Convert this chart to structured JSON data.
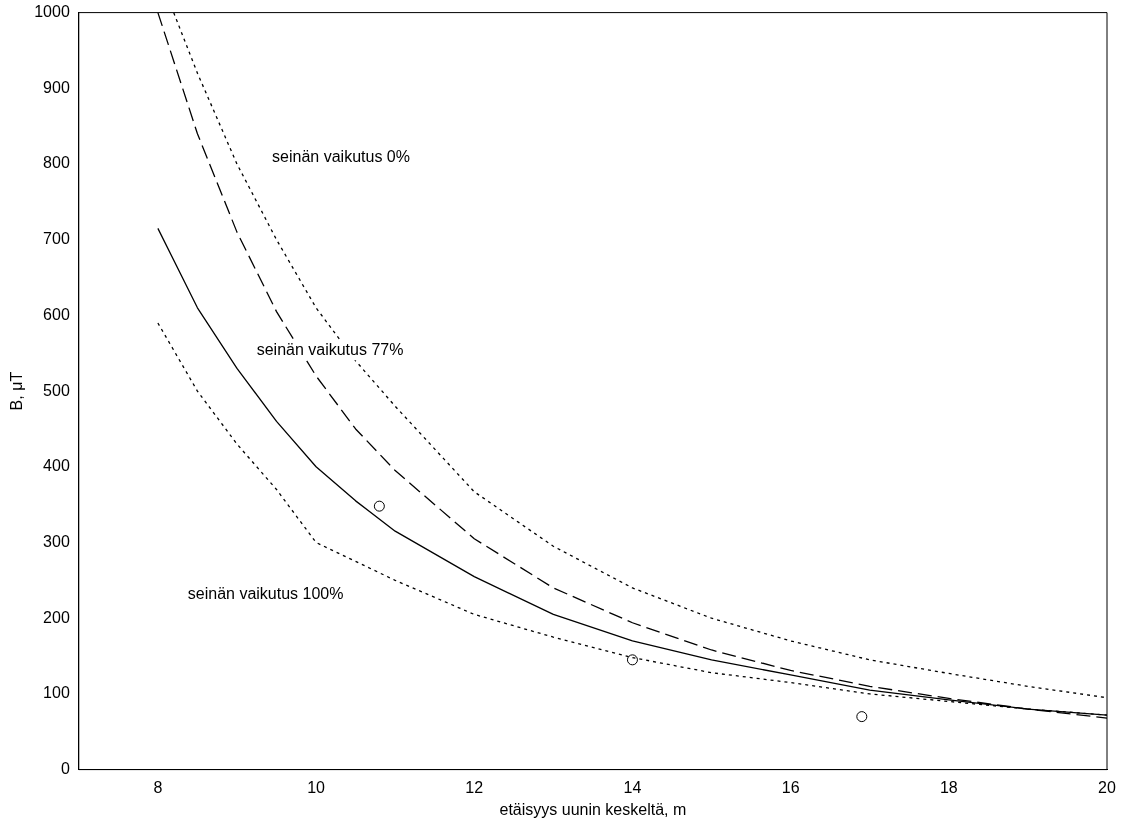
{
  "chart_data": {
    "type": "line",
    "xlabel": "etäisyys uunin keskeltä, m",
    "ylabel": "B, μT",
    "xlim": [
      7,
      20
    ],
    "xticks": [
      8,
      10,
      12,
      14,
      16,
      18,
      20
    ],
    "ylim": [
      0,
      1000
    ],
    "yticks": [
      0,
      100,
      200,
      300,
      400,
      500,
      600,
      700,
      800,
      900,
      1000
    ],
    "grid": false,
    "legend": false,
    "marker": "none",
    "series": [
      {
        "color": "#000000",
        "line_style": "dotted",
        "x": [
          8.2,
          8.5,
          9,
          9.5,
          10,
          10.5,
          11,
          12,
          13,
          14,
          15,
          16,
          17,
          18,
          19,
          20
        ],
        "values": [
          1000,
          920,
          800,
          700,
          610,
          540,
          480,
          367,
          295,
          240,
          200,
          170,
          145,
          127,
          110,
          95
        ]
      },
      {
        "color": "#000000",
        "line_style": "dashed",
        "x": [
          8,
          8.5,
          9,
          9.5,
          10,
          10.5,
          11,
          12,
          13,
          14,
          15,
          16,
          17,
          18,
          19,
          20
        ],
        "values": [
          1000,
          840,
          710,
          605,
          520,
          450,
          395,
          305,
          240,
          194,
          158,
          131,
          110,
          94,
          80,
          68
        ]
      },
      {
        "color": "#000000",
        "line_style": "solid",
        "x": [
          8,
          8.5,
          9,
          9.5,
          10,
          10.5,
          11,
          12,
          13,
          14,
          15,
          16,
          17,
          18,
          19,
          20
        ],
        "values": [
          715,
          610,
          530,
          460,
          400,
          355,
          315,
          255,
          205,
          170,
          145,
          125,
          105,
          92,
          80,
          72
        ]
      },
      {
        "color": "#000000",
        "line_style": "dotted",
        "x": [
          8,
          8.5,
          9,
          9.5,
          10,
          10.5,
          11,
          12,
          13,
          14,
          15,
          16,
          17,
          18,
          19,
          20
        ],
        "values": [
          590,
          500,
          430,
          370,
          300,
          275,
          250,
          205,
          175,
          148,
          128,
          115,
          100,
          90,
          80,
          72
        ]
      },
      {
        "type": "scatter",
        "marker": "circle",
        "color": "#000000",
        "x": [
          10.8,
          14,
          16.9
        ],
        "values": [
          348,
          145,
          70
        ]
      }
    ],
    "annotations": [
      "seinän vaikutus 0%",
      "seinän vaikutus 77%",
      "seinän vaikutus 100%"
    ]
  }
}
